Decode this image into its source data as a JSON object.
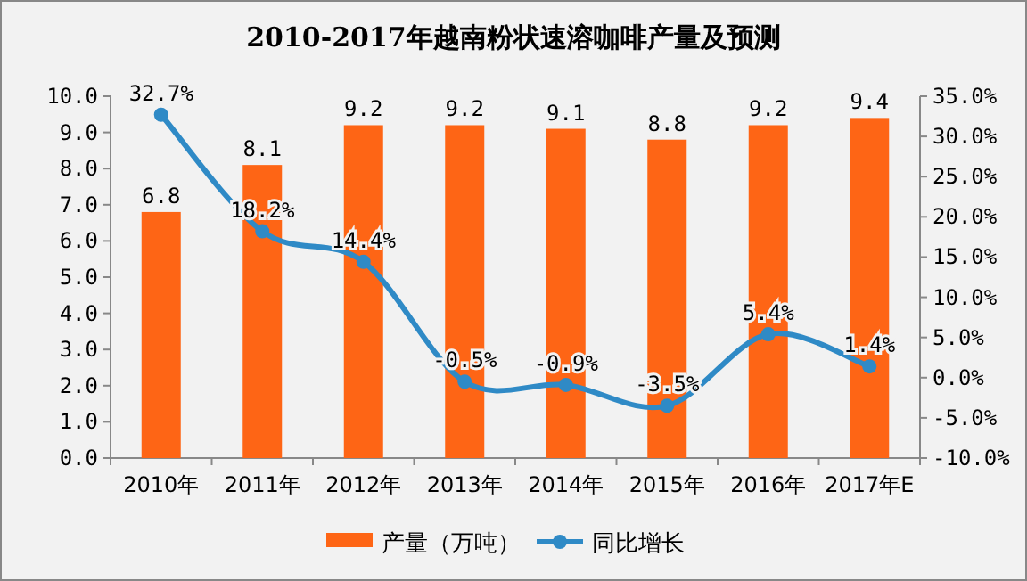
{
  "chart_data": {
    "type": "bar",
    "title": "2010-2017年越南粉状速溶咖啡产量及预测",
    "categories": [
      "2010年",
      "2011年",
      "2012年",
      "2013年",
      "2014年",
      "2015年",
      "2016年",
      "2017年E"
    ],
    "series": [
      {
        "name": "产量（万吨）",
        "color": "#fe6515",
        "values": [
          6.8,
          8.1,
          9.2,
          9.2,
          9.1,
          8.8,
          9.2,
          9.4
        ],
        "value_labels": [
          "6.8",
          "8.1",
          "9.2",
          "9.2",
          "9.1",
          "8.8",
          "9.2",
          "9.4"
        ]
      },
      {
        "name": "同比增长",
        "type": "line",
        "axis": "y2",
        "color": "#2f8ac6",
        "marker": "circle",
        "values": [
          32.7,
          18.2,
          14.4,
          -0.5,
          -0.9,
          -3.5,
          5.4,
          1.4
        ],
        "value_labels": [
          "32.7%",
          "18.2%",
          "14.4%",
          "-0.5%",
          "-0.9%",
          "-3.5%",
          "5.4%",
          "1.4%"
        ]
      }
    ],
    "ylim": [
      0,
      10
    ],
    "yticks": [
      {
        "value": 0,
        "label": "0.0"
      },
      {
        "value": 1,
        "label": "1.0"
      },
      {
        "value": 2,
        "label": "2.0"
      },
      {
        "value": 3,
        "label": "3.0"
      },
      {
        "value": 4,
        "label": "4.0"
      },
      {
        "value": 5,
        "label": "5.0"
      },
      {
        "value": 6,
        "label": "6.0"
      },
      {
        "value": 7,
        "label": "7.0"
      },
      {
        "value": 8,
        "label": "8.0"
      },
      {
        "value": 9,
        "label": "9.0"
      },
      {
        "value": 10,
        "label": "10.0"
      }
    ],
    "y2lim": [
      -10,
      35
    ],
    "y2ticks": [
      {
        "value": -10,
        "label": "-10.0%"
      },
      {
        "value": -5,
        "label": "-5.0%"
      },
      {
        "value": 0,
        "label": "0.0%"
      },
      {
        "value": 5,
        "label": "5.0%"
      },
      {
        "value": 10,
        "label": "10.0%"
      },
      {
        "value": 15,
        "label": "15.0%"
      },
      {
        "value": 20,
        "label": "20.0%"
      },
      {
        "value": 25,
        "label": "25.0%"
      },
      {
        "value": 30,
        "label": "30.0%"
      },
      {
        "value": 35,
        "label": "35.0%"
      }
    ],
    "legend": "bottom",
    "grid": false
  }
}
